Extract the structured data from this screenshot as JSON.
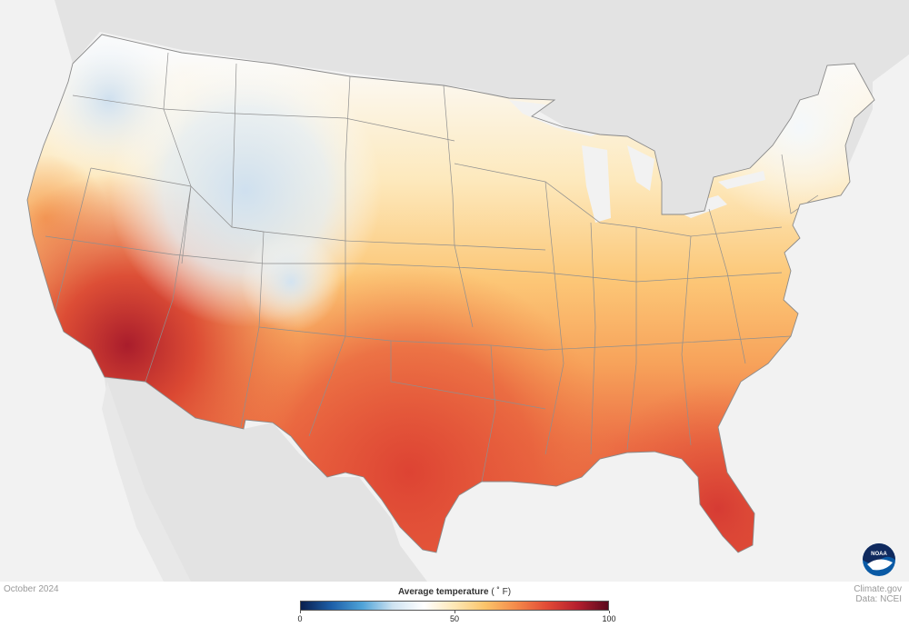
{
  "map": {
    "date_label": "October 2024",
    "credit_line1": "Climate.gov",
    "credit_line2": "Data: NCEI",
    "logo_text": "NOAA"
  },
  "legend": {
    "title": "Average temperature",
    "unit": "( ˚ F)",
    "ticks": [
      "0",
      "50",
      "100"
    ],
    "min": 0,
    "max": 100,
    "colors": [
      "#0a1f4e",
      "#1d5fa8",
      "#4fa3d8",
      "#cfe3f1",
      "#ffffff",
      "#fde7b5",
      "#fbc46a",
      "#f48a4a",
      "#e24b36",
      "#b51f2e",
      "#5a0a1e"
    ]
  },
  "colors": {
    "land_background": "#e3e3e3",
    "water_background": "#f2f2f2",
    "border_color": "#8f8f8f",
    "noaa_blue": "#0a5aa5",
    "noaa_navy": "#102a5e"
  }
}
